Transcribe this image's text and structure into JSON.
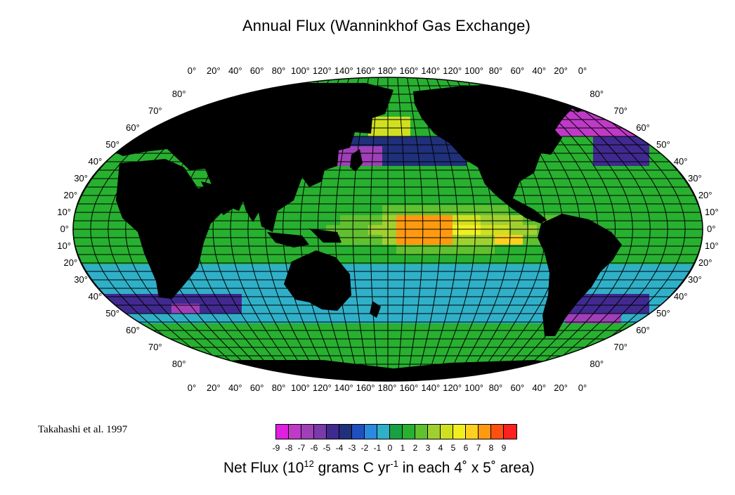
{
  "title": "Annual Flux (Wanninkhof Gas Exchange)",
  "citation": "Takahashi et al. 1997",
  "top_lon_labels": [
    "0°",
    "20°",
    "40°",
    "60°",
    "80°",
    "100°",
    "120°",
    "140°",
    "160°",
    "180°",
    "160°",
    "140°",
    "120°",
    "100°",
    "80°",
    "60°",
    "40°",
    "20°",
    "0°"
  ],
  "bottom_lon_labels": [
    "0°",
    "20°",
    "40°",
    "60°",
    "80°",
    "100°",
    "120°",
    "140°",
    "160°",
    "180°",
    "160°",
    "140°",
    "120°",
    "100°",
    "80°",
    "60°",
    "40°",
    "20°",
    "0°"
  ],
  "lat_labels": [
    "80°",
    "70°",
    "60°",
    "50°",
    "40°",
    "30°",
    "20°",
    "10°",
    "0°",
    "10°",
    "20°",
    "30°",
    "40°",
    "50°",
    "60°",
    "70°",
    "80°"
  ],
  "colorbar": {
    "ticks": [
      "-9",
      "-8",
      "-7",
      "-6",
      "-5",
      "-4",
      "-3",
      "-2",
      "-1",
      "0",
      "1",
      "2",
      "3",
      "4",
      "5",
      "6",
      "7",
      "8",
      "9"
    ],
    "colors": [
      "#e020e0",
      "#c03ac8",
      "#a040b8",
      "#7a3aa8",
      "#402a90",
      "#20307a",
      "#2050c0",
      "#2a8ae0",
      "#30b0c8",
      "#1aa040",
      "#28b030",
      "#60c030",
      "#a0d030",
      "#d0e020",
      "#f0f020",
      "#ffd020",
      "#ff9a10",
      "#ff5010",
      "#ff2020"
    ]
  },
  "footer": {
    "prefix": "Net Flux (10",
    "exp1": "12",
    "mid": " grams C yr",
    "exp2": "-1",
    "suffix": " in each 4˚ x 5˚ area)"
  }
}
